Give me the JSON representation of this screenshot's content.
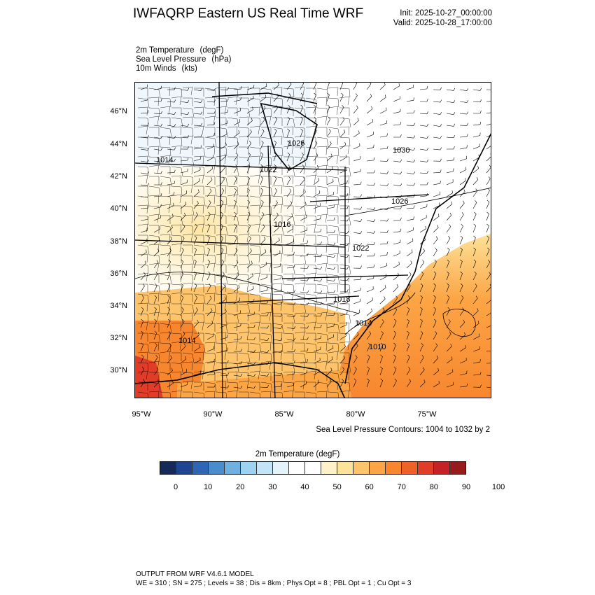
{
  "header": {
    "title": "IWFAQRP Eastern US Real Time WRF",
    "init": "Init: 2025-10-27_00:00:00",
    "valid": "Valid: 2025-10-28_17:00:00"
  },
  "fields": [
    {
      "name": "2m Temperature",
      "unit": "(degF)"
    },
    {
      "name": "Sea Level Pressure",
      "unit": "(hPa)"
    },
    {
      "name": "10m Winds",
      "unit": "(kts)"
    }
  ],
  "axes": {
    "lat_labels": [
      "46°N",
      "44°N",
      "42°N",
      "40°N",
      "38°N",
      "36°N",
      "34°N",
      "32°N",
      "30°N"
    ],
    "lon_labels": [
      "95°W",
      "90°W",
      "85°W",
      "80°W",
      "75°W"
    ]
  },
  "pressure_labels": [
    "1026",
    "1030",
    "1014",
    "1022",
    "1026",
    "1016",
    "1022",
    "1018",
    "1014",
    "1010",
    "1014"
  ],
  "contour_note": "Sea Level Pressure Contours: 1004 to 1032 by 2",
  "colorbar": {
    "title": "2m Temperature  (degF)",
    "colors": [
      "#162a5a",
      "#1e4690",
      "#2e65b4",
      "#4a8ccc",
      "#6fb0e0",
      "#9dd2f0",
      "#c2e4f6",
      "#e4f2fa",
      "#ffffff",
      "#ffffff",
      "#fdf1c8",
      "#fde29a",
      "#fdc46c",
      "#fca544",
      "#f7862e",
      "#ee6128",
      "#e03c28",
      "#c42224",
      "#951b1c"
    ],
    "ticks": [
      "0",
      "10",
      "20",
      "30",
      "40",
      "50",
      "60",
      "70",
      "80",
      "90",
      "100"
    ]
  },
  "footer": {
    "line1": "OUTPUT FROM WRF V4.6.1 MODEL",
    "line2": "WE = 310 ; SN = 275 ; Levels = 38 ; Dis = 8km ; Phys Opt = 8 ; PBL Opt = 1 ; Cu Opt = 3"
  }
}
